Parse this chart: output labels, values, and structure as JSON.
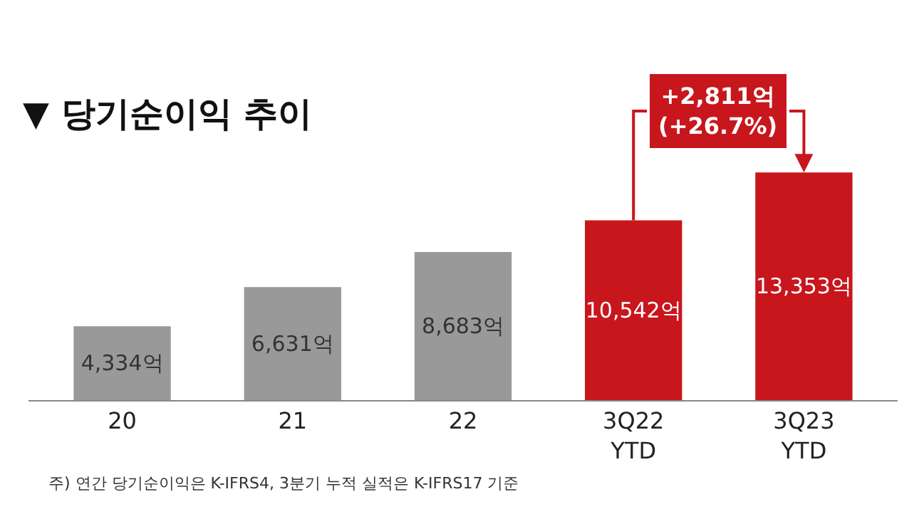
{
  "chart_data": {
    "type": "bar",
    "title": "▼ 당기순이익 추이",
    "categories": [
      "20",
      "21",
      "22",
      "3Q22\nYTD",
      "3Q23\nYTD"
    ],
    "values": [
      4334,
      6631,
      8683,
      10542,
      13353
    ],
    "colors": [
      "#999999",
      "#999999",
      "#999999",
      "#c8161d",
      "#c8161d"
    ],
    "value_labels": [
      "4,334억",
      "6,631억",
      "8,683억",
      "10,542억",
      "13,353억"
    ],
    "annotations": [
      "+2,811억\n(+26.7%)",
      "주) 연간 당기순이익은 K-IFRS4, 3분기 누적 실적은 K-IFRS17 기준"
    ]
  }
}
